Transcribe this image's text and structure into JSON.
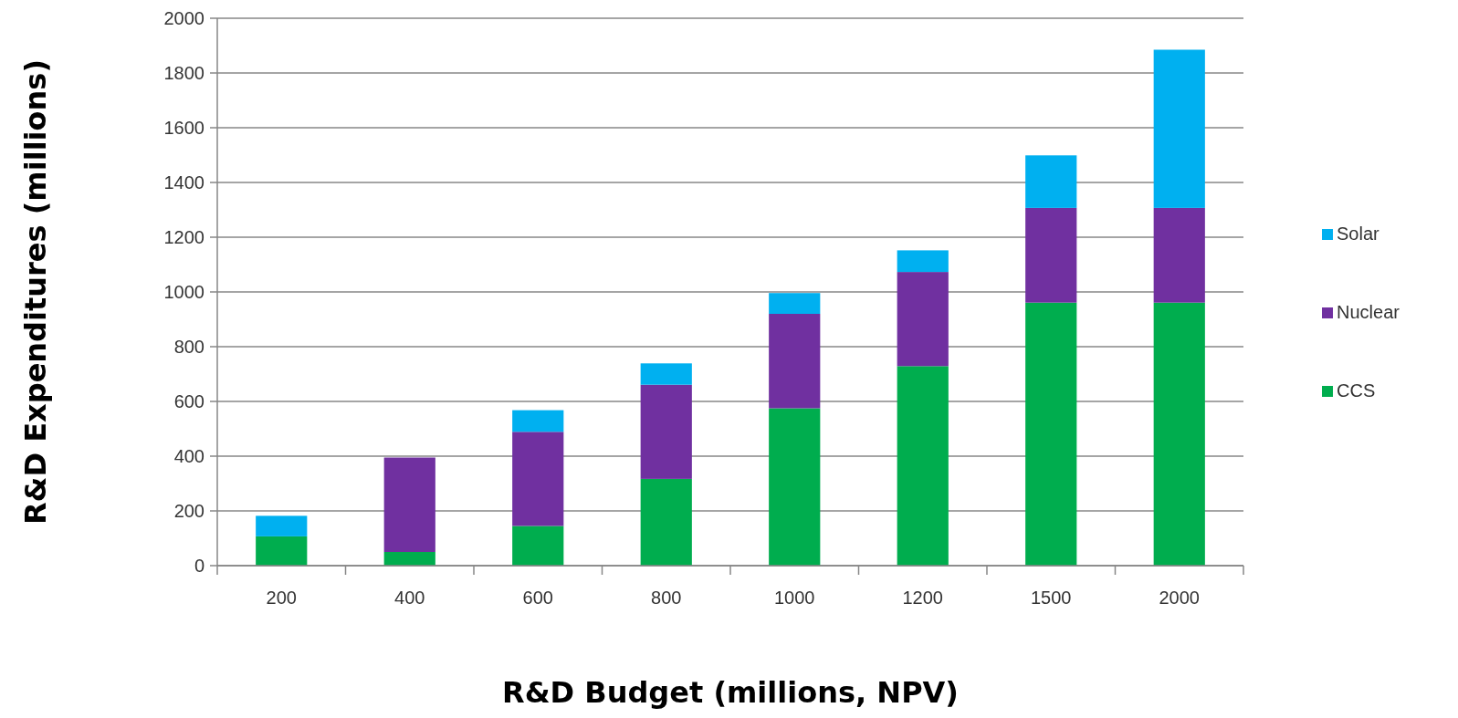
{
  "chart_data": {
    "type": "bar",
    "stacked": true,
    "xlabel": "R&D Budget (millions, NPV)",
    "ylabel": "R&D Expenditures (millions)",
    "categories": [
      "200",
      "400",
      "600",
      "800",
      "1000",
      "1200",
      "1500",
      "2000"
    ],
    "series": [
      {
        "name": "CCS",
        "color": "#00ad4e",
        "values": [
          107,
          50,
          145,
          317,
          575,
          729,
          961,
          961
        ]
      },
      {
        "name": "Nuclear",
        "color": "#7030a0",
        "values": [
          0,
          345,
          344,
          344,
          345,
          344,
          346,
          346
        ]
      },
      {
        "name": "Solar",
        "color": "#00b0f0",
        "values": [
          75,
          0,
          79,
          78,
          76,
          79,
          192,
          578
        ]
      }
    ],
    "ylim": [
      0,
      2000
    ],
    "yticks": [
      0,
      200,
      400,
      600,
      800,
      1000,
      1200,
      1400,
      1600,
      1800,
      2000
    ],
    "grid": "y",
    "legend": "right"
  }
}
